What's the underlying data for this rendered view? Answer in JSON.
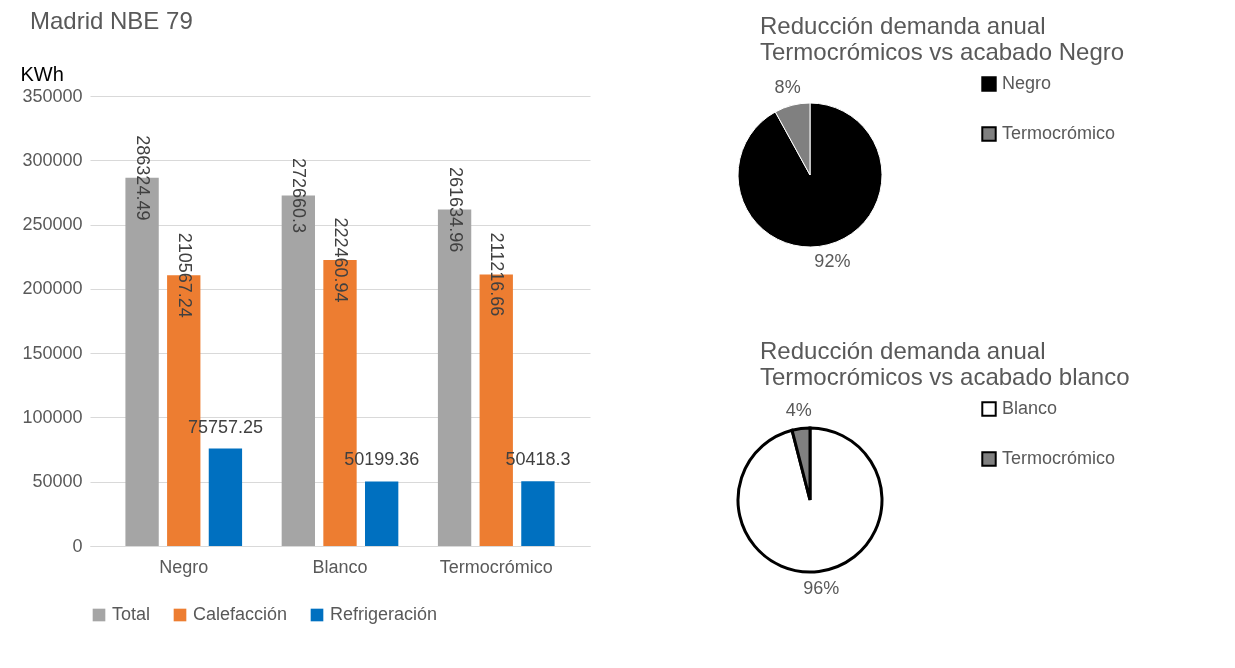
{
  "chart_data": [
    {
      "type": "bar",
      "title": "Madrid NBE 79",
      "ylabel": "KWh",
      "categories": [
        "Negro",
        "Blanco",
        "Termocrómico"
      ],
      "series": [
        {
          "name": "Total",
          "color": "#a5a5a5",
          "values": [
            286324.49,
            272660.3,
            261634.96
          ]
        },
        {
          "name": "Calefacción",
          "color": "#ed7d31",
          "values": [
            210567.24,
            222460.94,
            211216.66
          ]
        },
        {
          "name": "Refrigeración",
          "color": "#0070c0",
          "values": [
            75757.25,
            50199.36,
            50418.3
          ]
        }
      ],
      "ylim": [
        0,
        350000
      ],
      "yticks": [
        0,
        50000,
        100000,
        150000,
        200000,
        250000,
        300000,
        350000
      ],
      "grid": "y",
      "legend": "bottom",
      "data_labels": true
    },
    {
      "type": "pie",
      "title": "Reducción demanda anual\nTermocrómicos vs acabado Negro",
      "categories": [
        "Negro",
        "Termocrómico"
      ],
      "values": [
        92,
        8
      ],
      "colors": [
        "#000000",
        "#808080"
      ],
      "value_labels": [
        "92%",
        "8%"
      ],
      "legend": "right"
    },
    {
      "type": "pie",
      "title": "Reducción demanda anual\nTermocrómicos vs acabado blanco",
      "categories": [
        "Blanco",
        "Termocrómico"
      ],
      "values": [
        96,
        4
      ],
      "colors": [
        "#ffffff",
        "#808080"
      ],
      "value_labels": [
        "96%",
        "4%"
      ],
      "legend": "right"
    }
  ]
}
